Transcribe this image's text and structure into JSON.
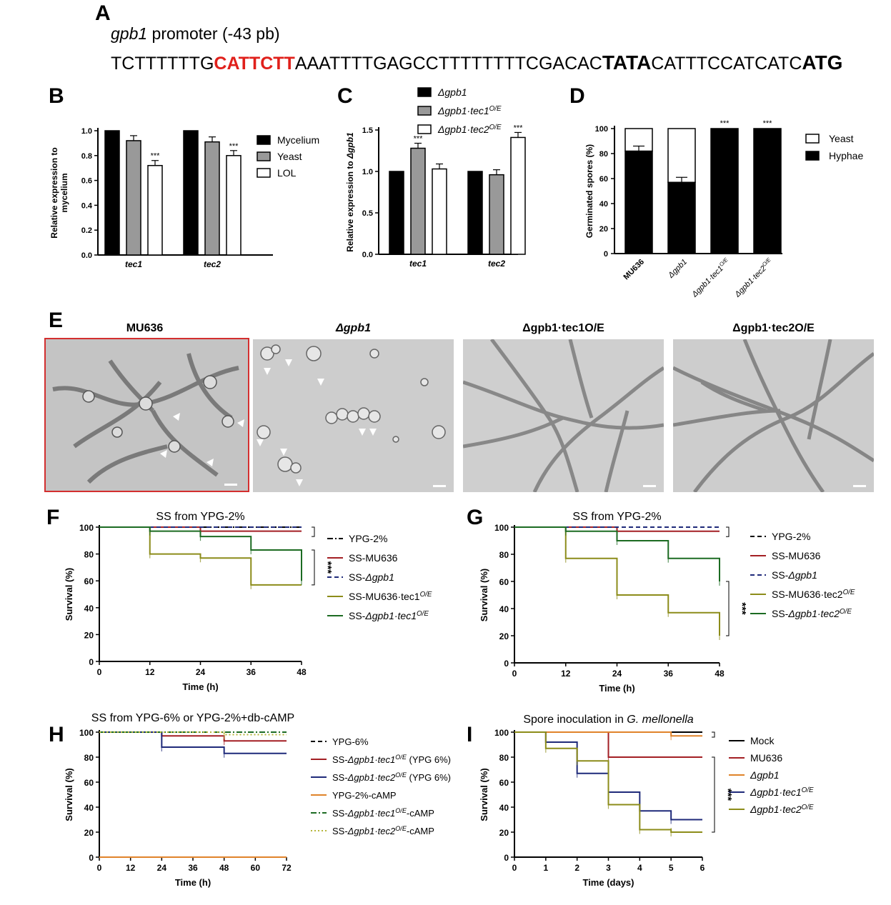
{
  "panels": {
    "a": "A",
    "b": "B",
    "c": "C",
    "d": "D",
    "e": "E",
    "f": "F",
    "g": "G",
    "h": "H",
    "i": "I"
  },
  "panel_a": {
    "gene": "gpb1",
    "promoter_label": " promoter (-43 pb)",
    "seq_1": "TCTTTTTTG",
    "seq_2": "CATTCTT",
    "seq_3": "AAATTTTGAGCCTTTTTTTTCGACAC",
    "seq_4": "TATA",
    "seq_5": "CATTTCCATCATC",
    "seq_6": "ATG",
    "colors": {
      "motif": "#e0201b"
    }
  },
  "panel_e": {
    "titles": [
      "MU636",
      "Δgpb1",
      "Δgpb1·tec1O/E",
      "Δgpb1·tec2O/E"
    ],
    "highlight_color": "#d32f2f"
  },
  "chart_data": [
    {
      "panel": "B",
      "type": "bar",
      "categories": [
        "tec1",
        "tec2"
      ],
      "ylabel": "Relative expression to mycelium",
      "ylim": [
        0,
        1.0
      ],
      "yticks": [
        "0.0",
        "0.2",
        "0.4",
        "0.6",
        "0.8",
        "1.0"
      ],
      "series": [
        {
          "name": "Mycelium",
          "values": [
            1.0,
            1.0
          ],
          "color": "#000000"
        },
        {
          "name": "Yeast",
          "values": [
            0.92,
            0.91
          ],
          "color": "#999999"
        },
        {
          "name": "LOL",
          "values": [
            0.72,
            0.8
          ],
          "color": "#ffffff"
        }
      ],
      "annotations": [
        "***",
        "***"
      ]
    },
    {
      "panel": "C",
      "type": "bar",
      "categories": [
        "tec1",
        "tec2"
      ],
      "ylabel": "Relative expression to Δgpb1",
      "ylim": [
        0,
        1.5
      ],
      "yticks": [
        "0.0",
        "0.5",
        "1.0",
        "1.5"
      ],
      "series": [
        {
          "name": "Δgpb1",
          "values": [
            1.0,
            1.0
          ],
          "color": "#000000"
        },
        {
          "name": "Δgpb1·tec1O/E",
          "values": [
            1.28,
            0.96
          ],
          "color": "#999999"
        },
        {
          "name": "Δgpb1·tec2O/E",
          "values": [
            1.03,
            1.41
          ],
          "color": "#ffffff"
        }
      ],
      "annotations": [
        "***",
        "***"
      ]
    },
    {
      "panel": "D",
      "type": "bar",
      "stacked": true,
      "categories": [
        "MU636",
        "Δgpb1",
        "Δgpb1·tec1O/E",
        "Δgpb1·tec2O/E"
      ],
      "ylabel": "Germinated spores (%)",
      "ylim": [
        0,
        100
      ],
      "yticks": [
        "0",
        "20",
        "40",
        "60",
        "80",
        "100"
      ],
      "series": [
        {
          "name": "Hyphae",
          "values": [
            82,
            57,
            100,
            100
          ],
          "color": "#000000"
        },
        {
          "name": "Yeast",
          "values": [
            18,
            43,
            0,
            0
          ],
          "color": "#ffffff"
        }
      ],
      "annotations": [
        "",
        "***",
        "***",
        "***"
      ]
    },
    {
      "panel": "F",
      "type": "line",
      "title": "SS from YPG-2%",
      "xlabel": "Time (h)",
      "ylabel": "Survival (%)",
      "xlim": [
        0,
        48
      ],
      "ylim": [
        0,
        100
      ],
      "xticks": [
        "0",
        "12",
        "24",
        "36",
        "48"
      ],
      "yticks": [
        "0",
        "20",
        "40",
        "60",
        "80",
        "100"
      ],
      "significance": "***",
      "series": [
        {
          "name": "YPG-2%",
          "color": "#000000",
          "dash": "dashdot",
          "x": [
            0,
            48
          ],
          "y": [
            100,
            100
          ]
        },
        {
          "name": "SS-MU636",
          "color": "#a31f24",
          "dash": "solid",
          "x": [
            0,
            24,
            48
          ],
          "y": [
            100,
            97,
            97
          ]
        },
        {
          "name": "SS-Δgpb1",
          "color": "#1f2a7a",
          "dash": "dashed",
          "x": [
            0,
            48
          ],
          "y": [
            100,
            100
          ]
        },
        {
          "name": "SS-MU636·tec1O/E",
          "color": "#8c8c1a",
          "dash": "solid",
          "x": [
            0,
            12,
            24,
            36,
            48
          ],
          "y": [
            100,
            80,
            77,
            57,
            57
          ]
        },
        {
          "name": "SS-Δgpb1·tec1O/E",
          "color": "#1c6b22",
          "dash": "solid",
          "x": [
            0,
            12,
            24,
            36,
            48
          ],
          "y": [
            100,
            97,
            93,
            83,
            60
          ]
        }
      ]
    },
    {
      "panel": "G",
      "type": "line",
      "title": "SS from YPG-2%",
      "xlabel": "Time (h)",
      "ylabel": "Survival (%)",
      "xlim": [
        0,
        48
      ],
      "ylim": [
        0,
        100
      ],
      "xticks": [
        "0",
        "12",
        "24",
        "36",
        "48"
      ],
      "yticks": [
        "0",
        "20",
        "40",
        "60",
        "80",
        "100"
      ],
      "significance": "***",
      "series": [
        {
          "name": "YPG-2%",
          "color": "#000000",
          "dash": "dashed",
          "x": [
            0,
            48
          ],
          "y": [
            100,
            100
          ]
        },
        {
          "name": "SS-MU636",
          "color": "#a31f24",
          "dash": "solid",
          "x": [
            0,
            24,
            48
          ],
          "y": [
            100,
            97,
            97
          ]
        },
        {
          "name": "SS-Δgpb1",
          "color": "#1f2a7a",
          "dash": "dashed",
          "x": [
            0,
            48
          ],
          "y": [
            100,
            100
          ]
        },
        {
          "name": "SS-MU636·tec2O/E",
          "color": "#8c8c1a",
          "dash": "solid",
          "x": [
            0,
            12,
            24,
            36,
            48
          ],
          "y": [
            100,
            77,
            50,
            37,
            20
          ]
        },
        {
          "name": "SS-Δgpb1·tec2O/E",
          "color": "#1c6b22",
          "dash": "solid",
          "x": [
            0,
            12,
            24,
            36,
            48
          ],
          "y": [
            100,
            97,
            90,
            77,
            60
          ]
        }
      ]
    },
    {
      "panel": "H",
      "type": "line",
      "title": "SS from YPG-6% or YPG-2%+db-cAMP",
      "xlabel": "Time (h)",
      "ylabel": "Survival (%)",
      "xlim": [
        0,
        72
      ],
      "ylim": [
        0,
        100
      ],
      "xticks": [
        "0",
        "12",
        "24",
        "36",
        "48",
        "60",
        "72"
      ],
      "yticks": [
        "0",
        "20",
        "40",
        "60",
        "80",
        "100"
      ],
      "series": [
        {
          "name": "YPG-6%",
          "color": "#000000",
          "dash": "dashed",
          "x": [
            0,
            72
          ],
          "y": [
            0,
            0
          ]
        },
        {
          "name": "SS-Δgpb1·tec1O/E (YPG 6%)",
          "color": "#a31f24",
          "dash": "solid",
          "x": [
            0,
            24,
            48,
            72
          ],
          "y": [
            100,
            97,
            93,
            93
          ]
        },
        {
          "name": "SS-Δgpb1·tec2O/E (YPG 6%)",
          "color": "#1f2a7a",
          "dash": "solid",
          "x": [
            0,
            24,
            48,
            72
          ],
          "y": [
            100,
            88,
            83,
            83
          ]
        },
        {
          "name": "YPG-2%-cAMP",
          "color": "#e0832a",
          "dash": "solid",
          "x": [
            0,
            72
          ],
          "y": [
            0,
            0
          ]
        },
        {
          "name": "SS-Δgpb1·tec1O/E-cAMP",
          "color": "#1c6b22",
          "dash": "dashdot",
          "x": [
            0,
            72
          ],
          "y": [
            100,
            100
          ]
        },
        {
          "name": "SS-Δgpb1·tec2O/E-cAMP",
          "color": "#b6b63a",
          "dash": "dotted",
          "x": [
            0,
            48,
            72
          ],
          "y": [
            100,
            98,
            98
          ]
        }
      ]
    },
    {
      "panel": "I",
      "type": "line",
      "title": "Spore inoculation in G. mellonella",
      "xlabel": "Time (days)",
      "ylabel": "Survival (%)",
      "xlim": [
        0,
        6
      ],
      "ylim": [
        0,
        100
      ],
      "xticks": [
        "0",
        "1",
        "2",
        "3",
        "4",
        "5",
        "6"
      ],
      "yticks": [
        "0",
        "20",
        "40",
        "60",
        "80",
        "100"
      ],
      "significance": "***",
      "series": [
        {
          "name": "Mock",
          "color": "#000000",
          "dash": "solid",
          "x": [
            0,
            6
          ],
          "y": [
            100,
            100
          ]
        },
        {
          "name": "MU636",
          "color": "#a31f24",
          "dash": "solid",
          "x": [
            0,
            3,
            6
          ],
          "y": [
            100,
            80,
            80
          ]
        },
        {
          "name": "Δgpb1",
          "color": "#e0832a",
          "dash": "solid",
          "x": [
            0,
            5,
            6
          ],
          "y": [
            100,
            97,
            97
          ]
        },
        {
          "name": "Δgpb1·tec1O/E",
          "color": "#1f2a7a",
          "dash": "solid",
          "x": [
            0,
            1,
            2,
            3,
            4,
            5,
            6
          ],
          "y": [
            100,
            92,
            67,
            52,
            37,
            30,
            30
          ]
        },
        {
          "name": "Δgpb1·tec2O/E",
          "color": "#8c8c1a",
          "dash": "solid",
          "x": [
            0,
            1,
            2,
            3,
            4,
            5,
            6
          ],
          "y": [
            100,
            87,
            77,
            42,
            22,
            20,
            20
          ]
        }
      ]
    }
  ]
}
